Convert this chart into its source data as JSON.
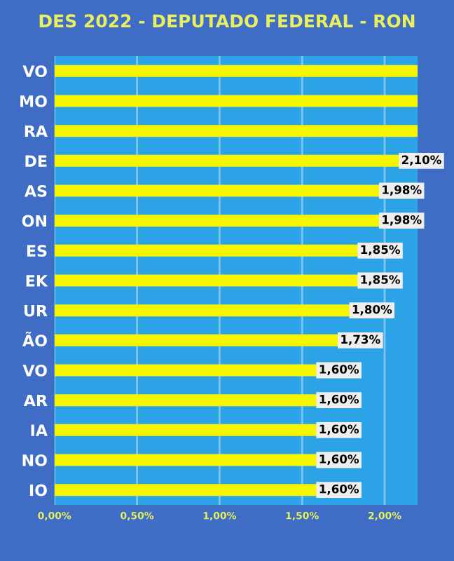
{
  "chart_data": {
    "type": "bar",
    "orientation": "horizontal",
    "title": "DES 2022 - DEPUTADO FEDERAL - RON",
    "categories": [
      "VO",
      "MO",
      "RA",
      "DE",
      "AS",
      "ON",
      "ES",
      "EK",
      "UR",
      "ÃO",
      "VO",
      "AR",
      "IA",
      "NO",
      "IO"
    ],
    "values": [
      2.2,
      2.2,
      2.2,
      2.1,
      1.98,
      1.98,
      1.85,
      1.85,
      1.8,
      1.73,
      1.6,
      1.6,
      1.6,
      1.6,
      1.6
    ],
    "value_labels": [
      null,
      null,
      null,
      "2,10%",
      "1,98%",
      "1,98%",
      "1,85%",
      "1,85%",
      "1,80%",
      "1,73%",
      "1,60%",
      "1,60%",
      "1,60%",
      "1,60%",
      "1,60%"
    ],
    "color": "#f5f500",
    "xlim": [
      0,
      2.2
    ],
    "xticks": [
      {
        "value": 0,
        "label": "0,00%"
      },
      {
        "value": 0.5,
        "label": "0,50%"
      },
      {
        "value": 1.0,
        "label": "1,00%"
      },
      {
        "value": 1.5,
        "label": "1,50%"
      },
      {
        "value": 2.0,
        "label": "2,00%"
      }
    ],
    "grid": "x",
    "legend": false
  }
}
